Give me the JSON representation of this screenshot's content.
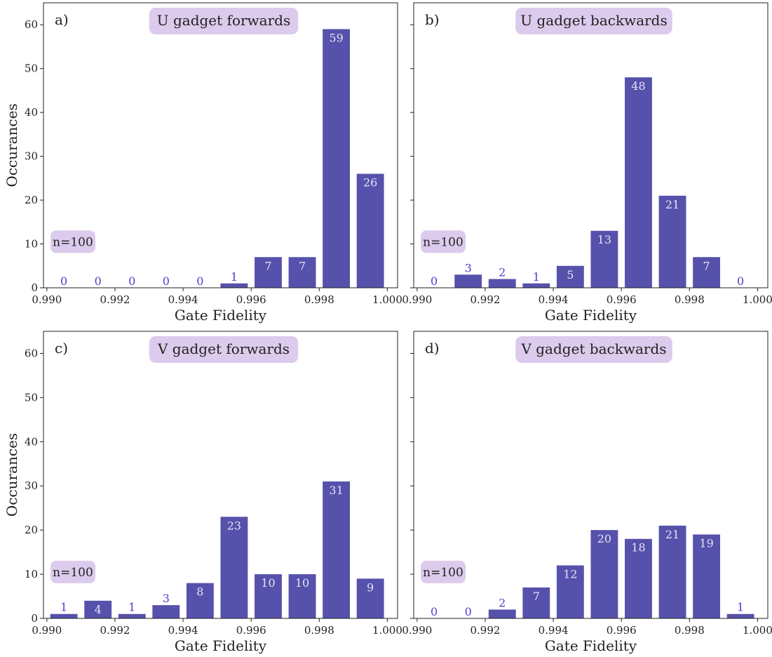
{
  "colors": {
    "bar": "#5651ab",
    "label_inside": "#e6e2f5",
    "label_outside": "#5a39c8",
    "badge_bg": "#dccbec",
    "axis": "#222222"
  },
  "shared": {
    "bar_centers": [
      0.9905,
      0.9915,
      0.9925,
      0.9935,
      0.9945,
      0.9955,
      0.9965,
      0.9975,
      0.9985,
      0.9995
    ],
    "xlim": [
      0.9899,
      1.0003
    ],
    "ylim": [
      0,
      65
    ],
    "x_ticks": [
      "0.990",
      "0.992",
      "0.994",
      "0.996",
      "0.998",
      "1.000"
    ],
    "y_ticks": [
      "0",
      "10",
      "20",
      "30",
      "40",
      "50",
      "60"
    ]
  },
  "chart_data": [
    {
      "type": "bar",
      "panel": "a)",
      "title": "U gadget forwards",
      "n_label": "n=100",
      "xlabel": "Gate Fidelity",
      "ylabel": "Occurances",
      "values": [
        0,
        0,
        0,
        0,
        0,
        1,
        7,
        7,
        59,
        26
      ]
    },
    {
      "type": "bar",
      "panel": "b)",
      "title": "U gadget backwards",
      "n_label": "n=100",
      "xlabel": "Gate Fidelity",
      "ylabel": "",
      "values": [
        0,
        3,
        2,
        1,
        5,
        13,
        48,
        21,
        7,
        0
      ]
    },
    {
      "type": "bar",
      "panel": "c)",
      "title": "V gadget forwards",
      "n_label": "n=100",
      "xlabel": "Gate Fidelity",
      "ylabel": "Occurances",
      "values": [
        1,
        4,
        1,
        3,
        8,
        23,
        10,
        10,
        31,
        9
      ]
    },
    {
      "type": "bar",
      "panel": "d)",
      "title": "V gadget backwards",
      "n_label": "n=100",
      "xlabel": "Gate Fidelity",
      "ylabel": "",
      "values": [
        0,
        0,
        2,
        7,
        12,
        20,
        18,
        21,
        19,
        1
      ]
    }
  ]
}
